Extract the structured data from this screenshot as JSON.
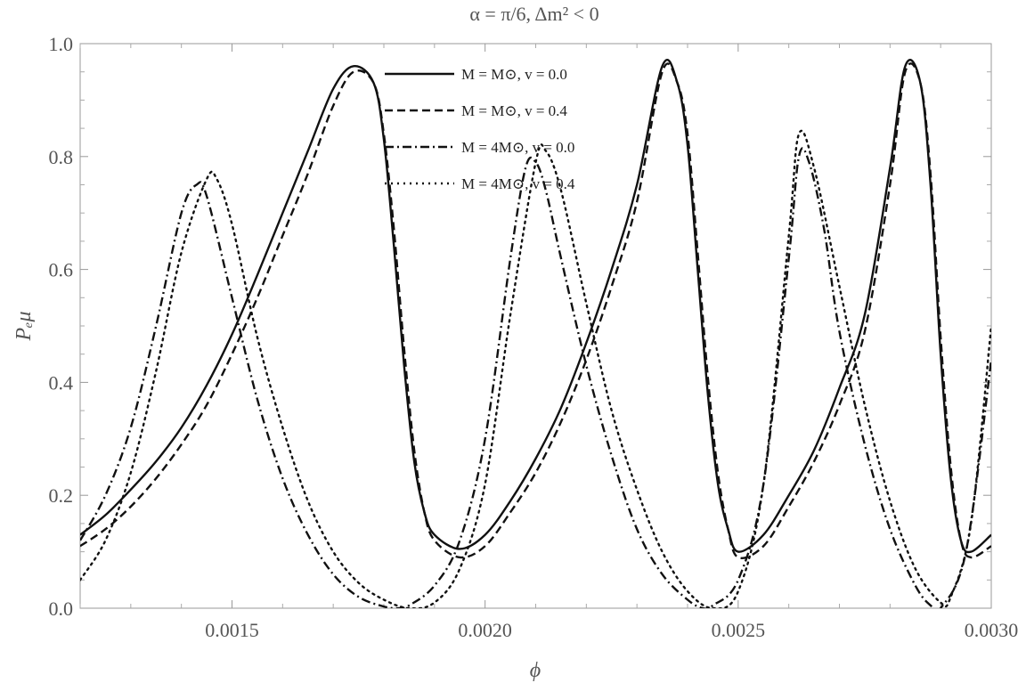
{
  "chart_data": {
    "type": "line",
    "title": "α = π/6, Δm² < 0",
    "xlabel": "ϕ",
    "ylabel": "Pₑμ",
    "xlim": [
      0.0012,
      0.003
    ],
    "ylim": [
      0.0,
      1.0
    ],
    "xticks": [
      0.0015,
      0.002,
      0.0025,
      0.003
    ],
    "xtick_labels": [
      "0.0015",
      "0.0020",
      "0.0025",
      "0.0030"
    ],
    "yticks": [
      0.0,
      0.2,
      0.4,
      0.6,
      0.8,
      1.0
    ],
    "ytick_labels": [
      "0.0",
      "0.2",
      "0.4",
      "0.6",
      "0.8",
      "1.0"
    ],
    "grid": false,
    "legend_position": "top-center",
    "series": [
      {
        "name": "M = M⊙, v = 0.0",
        "style": "solid",
        "x": [
          0.0012,
          0.00125,
          0.0013,
          0.00135,
          0.0014,
          0.00145,
          0.0015,
          0.00155,
          0.0016,
          0.00165,
          0.0017,
          0.00174,
          0.00178,
          0.0018,
          0.00182,
          0.00184,
          0.00186,
          0.00188,
          0.0019,
          0.00195,
          0.002,
          0.00205,
          0.0021,
          0.00215,
          0.0022,
          0.00225,
          0.0023,
          0.00235,
          0.00238,
          0.0024,
          0.00242,
          0.00244,
          0.00246,
          0.00248,
          0.0025,
          0.00255,
          0.0026,
          0.00265,
          0.0027,
          0.00275,
          0.0028,
          0.00283,
          0.00286,
          0.00288,
          0.0029,
          0.00292,
          0.00294,
          0.00296,
          0.003
        ],
        "y": [
          0.13,
          0.165,
          0.21,
          0.26,
          0.32,
          0.395,
          0.485,
          0.59,
          0.7,
          0.81,
          0.92,
          0.96,
          0.93,
          0.83,
          0.64,
          0.43,
          0.26,
          0.17,
          0.13,
          0.105,
          0.13,
          0.19,
          0.265,
          0.355,
          0.47,
          0.6,
          0.75,
          0.96,
          0.93,
          0.82,
          0.6,
          0.38,
          0.22,
          0.14,
          0.1,
          0.13,
          0.2,
          0.28,
          0.39,
          0.52,
          0.78,
          0.96,
          0.93,
          0.75,
          0.45,
          0.23,
          0.12,
          0.1,
          0.13
        ]
      },
      {
        "name": "M = M⊙, v = 0.4",
        "style": "dashed",
        "x": [
          0.0012,
          0.00125,
          0.0013,
          0.00135,
          0.0014,
          0.00145,
          0.0015,
          0.00155,
          0.0016,
          0.00165,
          0.0017,
          0.00174,
          0.00178,
          0.0018,
          0.00182,
          0.00184,
          0.00186,
          0.00188,
          0.0019,
          0.00195,
          0.002,
          0.00205,
          0.0021,
          0.00215,
          0.0022,
          0.00225,
          0.0023,
          0.00235,
          0.00238,
          0.0024,
          0.00242,
          0.00244,
          0.00246,
          0.00248,
          0.0025,
          0.00255,
          0.0026,
          0.00265,
          0.0027,
          0.00275,
          0.0028,
          0.00283,
          0.00286,
          0.00288,
          0.0029,
          0.00292,
          0.00294,
          0.00296,
          0.003
        ],
        "y": [
          0.11,
          0.14,
          0.18,
          0.23,
          0.29,
          0.36,
          0.45,
          0.55,
          0.66,
          0.77,
          0.89,
          0.95,
          0.93,
          0.84,
          0.67,
          0.46,
          0.28,
          0.17,
          0.12,
          0.09,
          0.11,
          0.17,
          0.24,
          0.33,
          0.44,
          0.57,
          0.72,
          0.95,
          0.93,
          0.84,
          0.63,
          0.41,
          0.24,
          0.14,
          0.09,
          0.11,
          0.18,
          0.26,
          0.36,
          0.49,
          0.75,
          0.95,
          0.93,
          0.77,
          0.48,
          0.25,
          0.12,
          0.09,
          0.11
        ]
      },
      {
        "name": "M = 4M⊙, v = 0.0",
        "style": "dashdot",
        "x": [
          0.0012,
          0.00125,
          0.0013,
          0.00135,
          0.0014,
          0.00143,
          0.00145,
          0.0015,
          0.00155,
          0.0016,
          0.00165,
          0.0017,
          0.00175,
          0.0018,
          0.00183,
          0.00185,
          0.0019,
          0.00195,
          0.002,
          0.00205,
          0.00208,
          0.0021,
          0.00212,
          0.00215,
          0.0022,
          0.00225,
          0.0023,
          0.00235,
          0.0024,
          0.00243,
          0.00245,
          0.0025,
          0.00255,
          0.0026,
          0.00262,
          0.00264,
          0.00267,
          0.0027,
          0.00275,
          0.0028,
          0.00285,
          0.00288,
          0.0029,
          0.00295,
          0.003
        ],
        "y": [
          0.12,
          0.2,
          0.32,
          0.5,
          0.7,
          0.75,
          0.73,
          0.55,
          0.37,
          0.23,
          0.13,
          0.06,
          0.02,
          0.003,
          0.0,
          0.005,
          0.04,
          0.12,
          0.3,
          0.62,
          0.78,
          0.79,
          0.74,
          0.62,
          0.43,
          0.27,
          0.14,
          0.06,
          0.015,
          0.0,
          0.005,
          0.05,
          0.22,
          0.62,
          0.8,
          0.79,
          0.67,
          0.49,
          0.29,
          0.14,
          0.04,
          0.005,
          0.0,
          0.1,
          0.44
        ]
      },
      {
        "name": "M = 4M⊙, v = 0.4",
        "style": "dotted",
        "x": [
          0.0012,
          0.00125,
          0.0013,
          0.00135,
          0.0014,
          0.00145,
          0.00147,
          0.0015,
          0.00155,
          0.0016,
          0.00165,
          0.0017,
          0.00175,
          0.0018,
          0.00185,
          0.0019,
          0.00195,
          0.002,
          0.00205,
          0.0021,
          0.00212,
          0.00215,
          0.0022,
          0.00225,
          0.0023,
          0.00235,
          0.0024,
          0.00245,
          0.0025,
          0.00255,
          0.0026,
          0.00262,
          0.00265,
          0.0027,
          0.00275,
          0.0028,
          0.00285,
          0.0029,
          0.00292,
          0.00296,
          0.003
        ],
        "y": [
          0.05,
          0.12,
          0.24,
          0.42,
          0.63,
          0.76,
          0.76,
          0.68,
          0.48,
          0.32,
          0.19,
          0.1,
          0.045,
          0.015,
          0.0,
          0.01,
          0.07,
          0.22,
          0.52,
          0.79,
          0.81,
          0.74,
          0.54,
          0.35,
          0.21,
          0.1,
          0.03,
          0.0,
          0.03,
          0.22,
          0.66,
          0.84,
          0.78,
          0.57,
          0.36,
          0.19,
          0.07,
          0.01,
          0.02,
          0.15,
          0.5
        ]
      }
    ]
  }
}
